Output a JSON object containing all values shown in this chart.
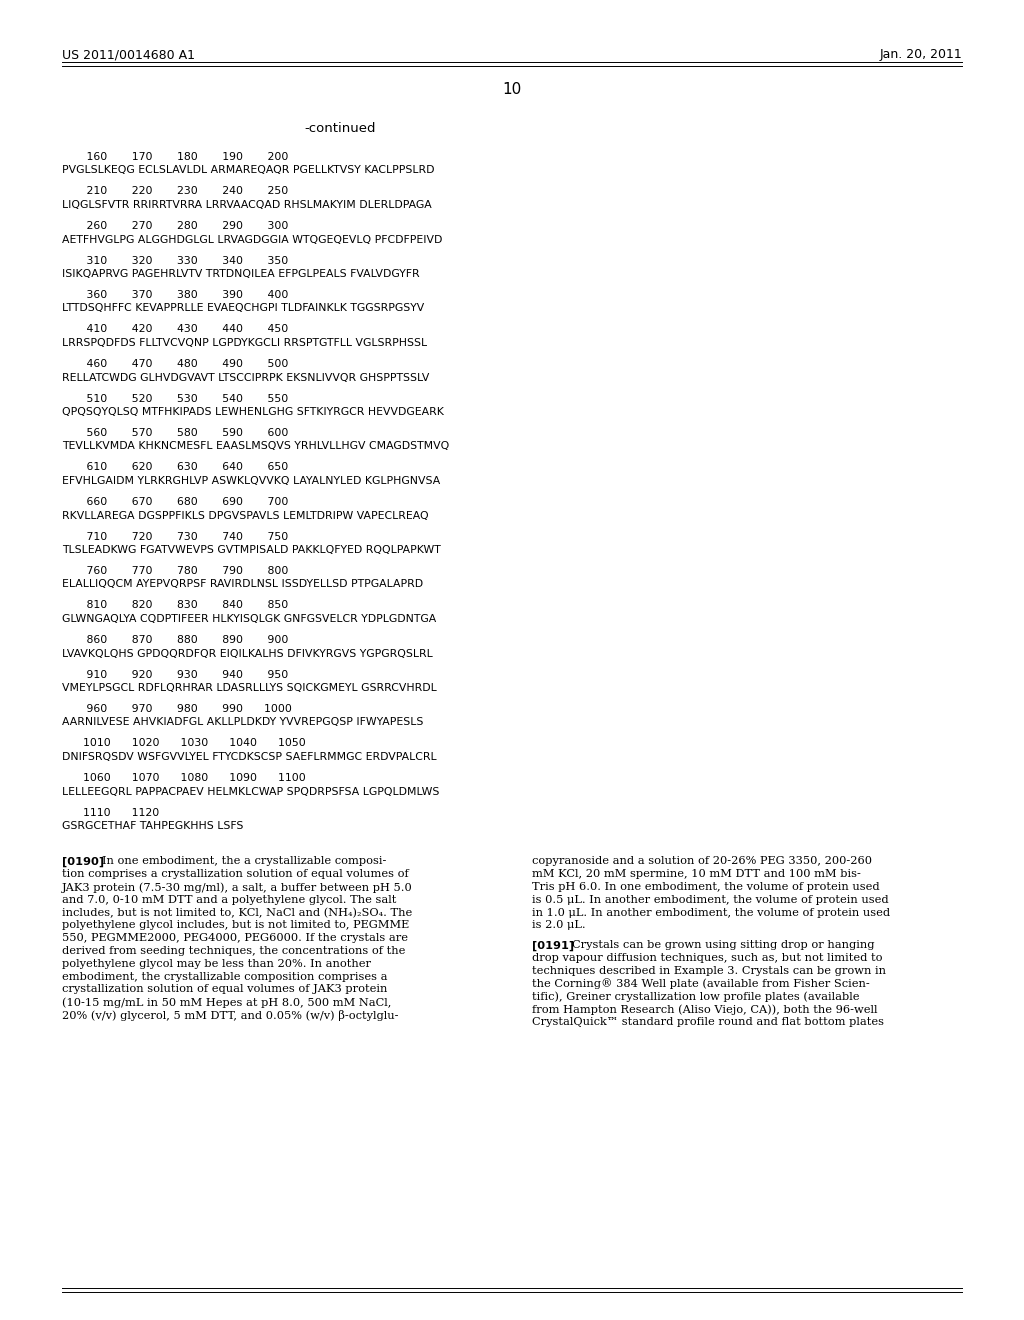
{
  "header_left": "US 2011/0014680 A1",
  "header_right": "Jan. 20, 2011",
  "page_number": "10",
  "continued_label": "-continued",
  "sequence_blocks": [
    {
      "numbers": "       160       170       180       190       200",
      "sequence": "PVGLSLKEQG ECLSLAVLDL ARMAREQAQR PGELLKTVSY KACLPPSLRD"
    },
    {
      "numbers": "       210       220       230       240       250",
      "sequence": "LIQGLSFVTR RRIRRTVRRA LRRVAACQAD RHSLMAKYIM DLERLDPAGA"
    },
    {
      "numbers": "       260       270       280       290       300",
      "sequence": "AETFHVGLPG ALGGHDGLGL LRVAGDGGIA WTQGEQEVLQ PFCDFPEIVD"
    },
    {
      "numbers": "       310       320       330       340       350",
      "sequence": "ISIKQAPRVG PAGEHRLVTV TRTDNQILEA EFPGLPEALS FVALVDGYFR"
    },
    {
      "numbers": "       360       370       380       390       400",
      "sequence": "LTTDSQHFFC KEVAPPRLLE EVAEQCHGPI TLDFAINKLK TGGSRPGSYV"
    },
    {
      "numbers": "       410       420       430       440       450",
      "sequence": "LRRSPQDFDS FLLTVCVQNP LGPDYKGCLI RRSPTGTFLL VGLSRPHSSL"
    },
    {
      "numbers": "       460       470       480       490       500",
      "sequence": "RELLATCWDG GLHVDGVAVT LTSCCIPRPK EKSNLIVVQR GHSPPTSSLV"
    },
    {
      "numbers": "       510       520       530       540       550",
      "sequence": "QPQSQYQLSQ MTFHKIPADS LEWHENLGHG SFTKIYRGCR HEVVDGEARK"
    },
    {
      "numbers": "       560       570       580       590       600",
      "sequence": "TEVLLKVMDA KHKNCMESFL EAASLMSQVS YRHLVLLHGV CMAGDSTMVQ"
    },
    {
      "numbers": "       610       620       630       640       650",
      "sequence": "EFVHLGAIDM YLRKRGHLVP ASWKLQVVKQ LAYALNYLED KGLPHGNVSA"
    },
    {
      "numbers": "       660       670       680       690       700",
      "sequence": "RKVLLAREGA DGSPPFIKLS DPGVSPAVLS LEMLTDRIPW VAPECLREAQ"
    },
    {
      "numbers": "       710       720       730       740       750",
      "sequence": "TLSLEADKWG FGATVWEVPS GVTMPISALD PAKKLQFYED RQQLPAPKWT"
    },
    {
      "numbers": "       760       770       780       790       800",
      "sequence": "ELALLIQQCM AYEPVQRPSF RAVIRDLNSL ISSDYELLSD PTPGALAPRD"
    },
    {
      "numbers": "       810       820       830       840       850",
      "sequence": "GLWNGAQLYA CQDPTIFEER HLKYISQLGK GNFGSVELCR YDPLGDNTGA"
    },
    {
      "numbers": "       860       870       880       890       900",
      "sequence": "LVAVKQLQHS GPDQQRDFQR EIQILKALHS DFIVKYRGVS YGPGRQSLRL"
    },
    {
      "numbers": "       910       920       930       940       950",
      "sequence": "VMEYLPSGCL RDFLQRHRAR LDASRLLLYS SQICKGMEYL GSRRCVHRDL"
    },
    {
      "numbers": "       960       970       980       990      1000",
      "sequence": "AARNILVESE AHVKIADFGL AKLLPLDKDY YVVREPGQSP IFWYAPESLS"
    },
    {
      "numbers": "      1010      1020      1030      1040      1050",
      "sequence": "DNIFSRQSDV WSFGVVLYEL FTYCDKSCSP SAEFLRMMGC ERDVPALCRL"
    },
    {
      "numbers": "      1060      1070      1080      1090      1100",
      "sequence": "LELLEEGQRL PAPPACPAEV HELMKLCWAP SPQDRPSFSA LGPQLDMLWS"
    },
    {
      "numbers": "      1110      1120",
      "sequence": "GSRGCETHAF TAHPEGKHHS LSFS"
    }
  ],
  "para_0190_tag": "[0190]",
  "para_0190_left_lines": [
    "In one embodiment, the a crystallizable composi-",
    "tion comprises a crystallization solution of equal volumes of",
    "JAK3 protein (7.5-30 mg/ml), a salt, a buffer between pH 5.0",
    "and 7.0, 0-10 mM DTT and a polyethylene glycol. The salt",
    "includes, but is not limited to, KCl, NaCl and (NH₄)₂SO₄. The",
    "polyethylene glycol includes, but is not limited to, PEGMME",
    "550, PEGMME2000, PEG4000, PEG6000. If the crystals are",
    "derived from seeding techniques, the concentrations of the",
    "polyethylene glycol may be less than 20%. In another",
    "embodiment, the crystallizable composition comprises a",
    "crystallization solution of equal volumes of JAK3 protein",
    "(10-15 mg/mL in 50 mM Hepes at pH 8.0, 500 mM NaCl,",
    "20% (v/v) glycerol, 5 mM DTT, and 0.05% (w/v) β-octylglu-"
  ],
  "para_0190_right_lines": [
    "copyranoside and a solution of 20-26% PEG 3350, 200-260",
    "mM KCl, 20 mM spermine, 10 mM DTT and 100 mM bis-",
    "Tris pH 6.0. In one embodiment, the volume of protein used",
    "is 0.5 μL. In another embodiment, the volume of protein used",
    "in 1.0 μL. In another embodiment, the volume of protein used",
    "is 2.0 μL."
  ],
  "para_0191_tag": "[0191]",
  "para_0191_right_lines": [
    "Crystals can be grown using sitting drop or hanging",
    "drop vapour diffusion techniques, such as, but not limited to",
    "techniques described in Example 3. Crystals can be grown in",
    "the Corning® 384 Well plate (available from Fisher Scien-",
    "tific), Greiner crystallization low profile plates (available",
    "from Hampton Research (Aliso Viejo, CA)), both the 96-well",
    "CrystalQuick™ standard profile round and flat bottom plates"
  ],
  "bg_color": "#ffffff",
  "text_color": "#000000"
}
